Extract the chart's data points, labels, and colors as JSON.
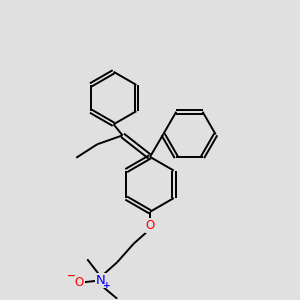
{
  "bg_color": "#e0e0e0",
  "line_color": "#000000",
  "bond_lw": 1.4,
  "font_size_atom": 8.5,
  "figsize": [
    3.0,
    3.0
  ],
  "dpi": 100,
  "xlim": [
    0,
    10
  ],
  "ylim": [
    0,
    10
  ]
}
